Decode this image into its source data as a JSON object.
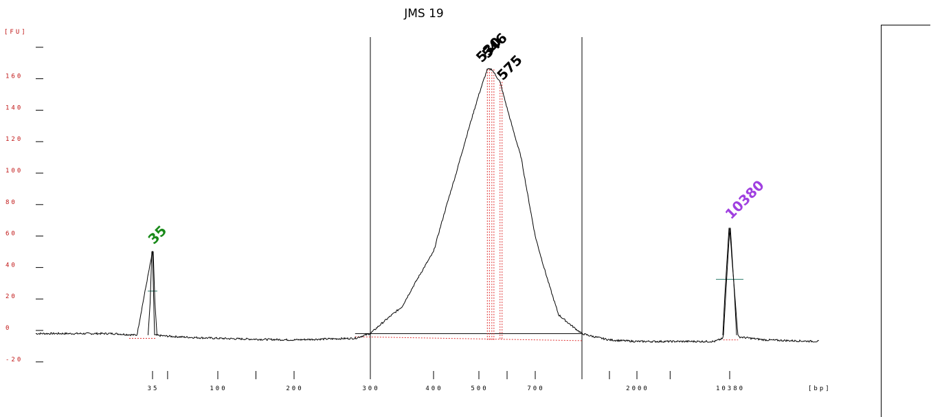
{
  "chart_data": {
    "type": "line",
    "title": "JMS 19",
    "ylabel": "[FU]",
    "xlabel": "[bp]",
    "y_ticks": [
      "160",
      "140",
      "120",
      "100",
      "80",
      "60",
      "40",
      "20",
      "0",
      "-20"
    ],
    "x_ticks": [
      "35",
      "100",
      "200",
      "300",
      "400",
      "500",
      "700",
      "2000",
      "10380"
    ],
    "ylim": [
      -20,
      180
    ],
    "peak_labels": [
      {
        "text": "35",
        "color": "#1a8a1a"
      },
      {
        "text": "530",
        "color": "#000000"
      },
      {
        "text": "546",
        "color": "#000000"
      },
      {
        "text": "575",
        "color": "#000000"
      },
      {
        "text": "10380",
        "color": "#a040e0"
      }
    ],
    "peaks": [
      {
        "size_bp": 35,
        "fu": 50,
        "marker": "lower"
      },
      {
        "size_bp": 530,
        "fu": 166,
        "marker": "sample"
      },
      {
        "size_bp": 546,
        "fu": 166,
        "marker": "sample"
      },
      {
        "size_bp": 575,
        "fu": 158,
        "marker": "sample"
      },
      {
        "size_bp": 10380,
        "fu": 65,
        "marker": "upper"
      }
    ],
    "region": {
      "from_bp": 300,
      "to_bp": 1000
    },
    "baseline_fu": -4,
    "grid": false,
    "series": [
      {
        "values": [
          {
            "bp": 20,
            "fu": -2
          },
          {
            "bp": 30,
            "fu": -2
          },
          {
            "bp": 33,
            "fu": -3
          },
          {
            "bp": 35,
            "fu": 50
          },
          {
            "bp": 37,
            "fu": -3
          },
          {
            "bp": 60,
            "fu": -4
          },
          {
            "bp": 100,
            "fu": -5
          },
          {
            "bp": 200,
            "fu": -6
          },
          {
            "bp": 280,
            "fu": -5
          },
          {
            "bp": 300,
            "fu": -2
          },
          {
            "bp": 350,
            "fu": 15
          },
          {
            "bp": 400,
            "fu": 50
          },
          {
            "bp": 450,
            "fu": 100
          },
          {
            "bp": 500,
            "fu": 150
          },
          {
            "bp": 530,
            "fu": 166
          },
          {
            "bp": 546,
            "fu": 166
          },
          {
            "bp": 575,
            "fu": 158
          },
          {
            "bp": 650,
            "fu": 110
          },
          {
            "bp": 700,
            "fu": 60
          },
          {
            "bp": 850,
            "fu": 10
          },
          {
            "bp": 1000,
            "fu": -2
          },
          {
            "bp": 1500,
            "fu": -6
          },
          {
            "bp": 2000,
            "fu": -7
          },
          {
            "bp": 5000,
            "fu": -7
          },
          {
            "bp": 9000,
            "fu": -7
          },
          {
            "bp": 9800,
            "fu": -5
          },
          {
            "bp": 10380,
            "fu": 65
          },
          {
            "bp": 11000,
            "fu": -4
          },
          {
            "bp": 13000,
            "fu": -6
          },
          {
            "bp": 17000,
            "fu": -7
          }
        ]
      }
    ]
  }
}
